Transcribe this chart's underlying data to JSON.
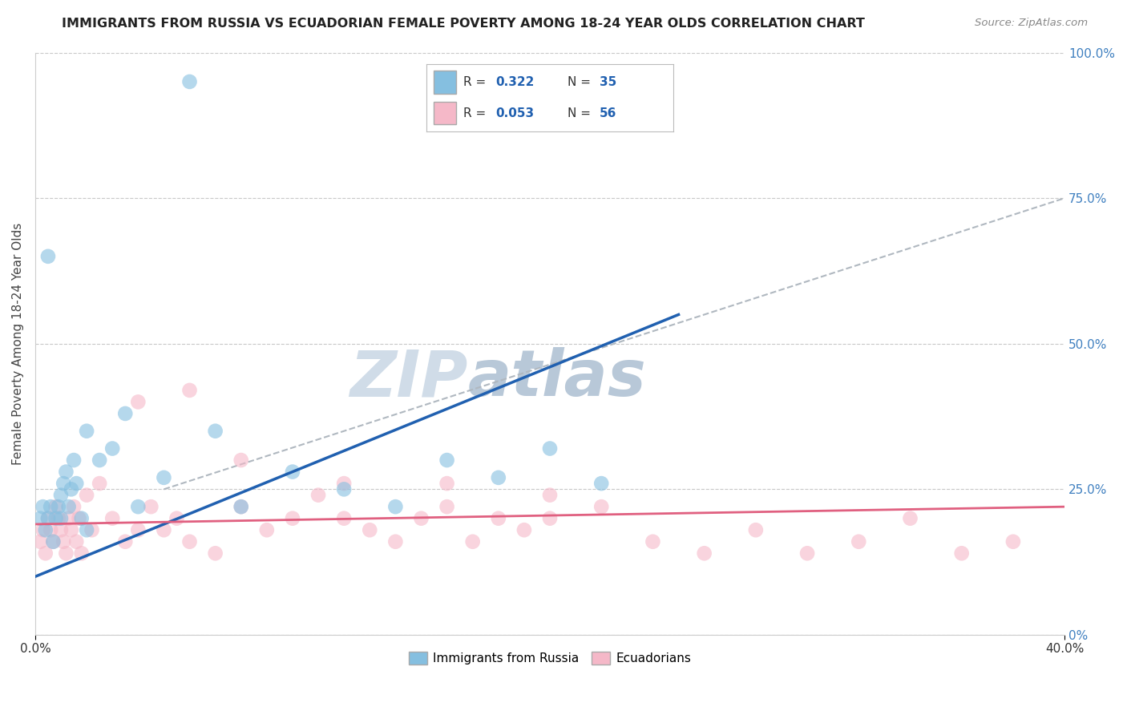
{
  "title": "IMMIGRANTS FROM RUSSIA VS ECUADORIAN FEMALE POVERTY AMONG 18-24 YEAR OLDS CORRELATION CHART",
  "source": "Source: ZipAtlas.com",
  "ylabel": "Female Poverty Among 18-24 Year Olds",
  "xlim": [
    0.0,
    40.0
  ],
  "ylim": [
    0.0,
    100.0
  ],
  "yticks": [
    0,
    25,
    50,
    75,
    100
  ],
  "ytick_labels": [
    "0%",
    "25.0%",
    "50.0%",
    "75.0%",
    "100.0%"
  ],
  "background_color": "#ffffff",
  "watermark_zip": "ZIP",
  "watermark_atlas": "atlas",
  "watermark_color_zip": "#d0dce8",
  "watermark_color_atlas": "#b8c8d8",
  "blue_color": "#85bfe0",
  "pink_color": "#f5b8c8",
  "blue_line_color": "#2060b0",
  "pink_line_color": "#e06080",
  "grid_color": "#c8c8c8",
  "tick_color": "#4080c0",
  "blue_scatter_x": [
    0.2,
    0.3,
    0.4,
    0.5,
    0.6,
    0.7,
    0.8,
    0.9,
    1.0,
    1.1,
    1.2,
    1.3,
    1.4,
    1.5,
    1.6,
    1.8,
    2.0,
    2.5,
    3.0,
    3.5,
    4.0,
    5.0,
    6.0,
    7.0,
    8.0,
    10.0,
    12.0,
    14.0,
    16.0,
    18.0,
    20.0,
    22.0,
    0.5,
    1.0,
    2.0
  ],
  "blue_scatter_y": [
    20,
    22,
    18,
    20,
    22,
    16,
    20,
    22,
    24,
    26,
    28,
    22,
    25,
    30,
    26,
    20,
    35,
    30,
    32,
    38,
    22,
    27,
    95,
    35,
    22,
    28,
    25,
    22,
    30,
    27,
    32,
    26,
    65,
    20,
    18
  ],
  "pink_scatter_x": [
    0.2,
    0.3,
    0.4,
    0.5,
    0.6,
    0.7,
    0.8,
    0.9,
    1.0,
    1.1,
    1.2,
    1.3,
    1.4,
    1.5,
    1.6,
    1.7,
    1.8,
    2.0,
    2.2,
    2.5,
    3.0,
    3.5,
    4.0,
    4.5,
    5.0,
    5.5,
    6.0,
    7.0,
    8.0,
    9.0,
    10.0,
    11.0,
    12.0,
    13.0,
    14.0,
    15.0,
    16.0,
    17.0,
    18.0,
    19.0,
    20.0,
    22.0,
    24.0,
    26.0,
    28.0,
    30.0,
    32.0,
    34.0,
    36.0,
    38.0,
    4.0,
    8.0,
    12.0,
    20.0,
    16.0,
    6.0
  ],
  "pink_scatter_y": [
    16,
    18,
    14,
    20,
    18,
    16,
    22,
    20,
    18,
    16,
    14,
    20,
    18,
    22,
    16,
    20,
    14,
    24,
    18,
    26,
    20,
    16,
    18,
    22,
    18,
    20,
    16,
    14,
    22,
    18,
    20,
    24,
    20,
    18,
    16,
    20,
    22,
    16,
    20,
    18,
    20,
    22,
    16,
    14,
    18,
    14,
    16,
    20,
    14,
    16,
    40,
    30,
    26,
    24,
    26,
    42
  ]
}
